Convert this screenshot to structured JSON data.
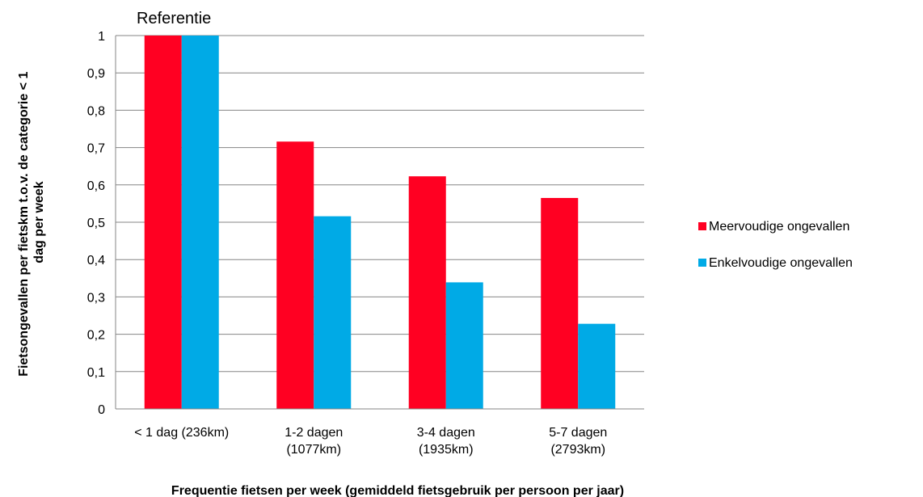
{
  "chart_data": {
    "type": "bar",
    "categories": [
      [
        "< 1 dag (236km)"
      ],
      [
        "1-2 dagen",
        "(1077km)"
      ],
      [
        "3-4 dagen",
        "(1935km)"
      ],
      [
        "5-7 dagen",
        "(2793km)"
      ]
    ],
    "series": [
      {
        "name": "Meervoudige ongevallen",
        "color": "#ff0022",
        "values": [
          1.0,
          0.716,
          0.623,
          0.565
        ]
      },
      {
        "name": "Enkelvoudige ongevallen",
        "color": "#00aae6",
        "values": [
          1.0,
          0.516,
          0.339,
          0.228
        ]
      }
    ],
    "ylim": [
      0,
      1
    ],
    "yticks": [
      "0",
      "0,1",
      "0,2",
      "0,3",
      "0,4",
      "0,5",
      "0,6",
      "0,7",
      "0,8",
      "0,9",
      "1"
    ],
    "ylabel_lines": [
      "Fietsongevallen per fietskm t.o.v. de categorie < 1",
      "dag per week"
    ],
    "xlabel": "Frequentie fietsen per week (gemiddeld fietsgebruik per persoon per jaar)",
    "annotation": "Referentie",
    "grid": true,
    "legend_position": "right"
  }
}
